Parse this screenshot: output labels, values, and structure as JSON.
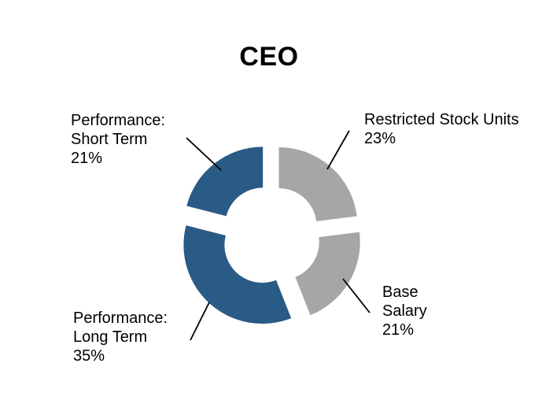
{
  "chart_data": {
    "type": "pie",
    "subtype": "exploded-donut",
    "title": "CEO",
    "legend_position": "none",
    "start_angle_deg": 0,
    "direction": "clockwise",
    "categories": [
      "Restricted Stock Units",
      "Base Salary",
      "Performance: Long Term",
      "Performance: Short Term"
    ],
    "values": [
      23,
      21,
      35,
      21
    ],
    "slices": [
      {
        "label": "Restricted Stock Units",
        "pct": 23,
        "color": "#A6A6A6",
        "label_lines": [
          "Restricted Stock Units",
          "23%"
        ]
      },
      {
        "label": "Base Salary",
        "pct": 21,
        "color": "#A6A6A6",
        "label_lines": [
          "Base",
          "Salary",
          "21%"
        ]
      },
      {
        "label": "Performance: Long Term",
        "pct": 35,
        "color": "#2A5A86",
        "label_lines": [
          "Performance:",
          "Long Term",
          "35%"
        ]
      },
      {
        "label": "Performance: Short Term",
        "pct": 21,
        "color": "#2A5A86",
        "label_lines": [
          "Performance:",
          "Short Term",
          "21%"
        ]
      }
    ],
    "colors": {
      "performance_blue": "#2A5A86",
      "fixed_pay_gray": "#A6A6A6",
      "leader_line": "#000000",
      "text": "#000000",
      "background": "#FFFFFF"
    }
  }
}
